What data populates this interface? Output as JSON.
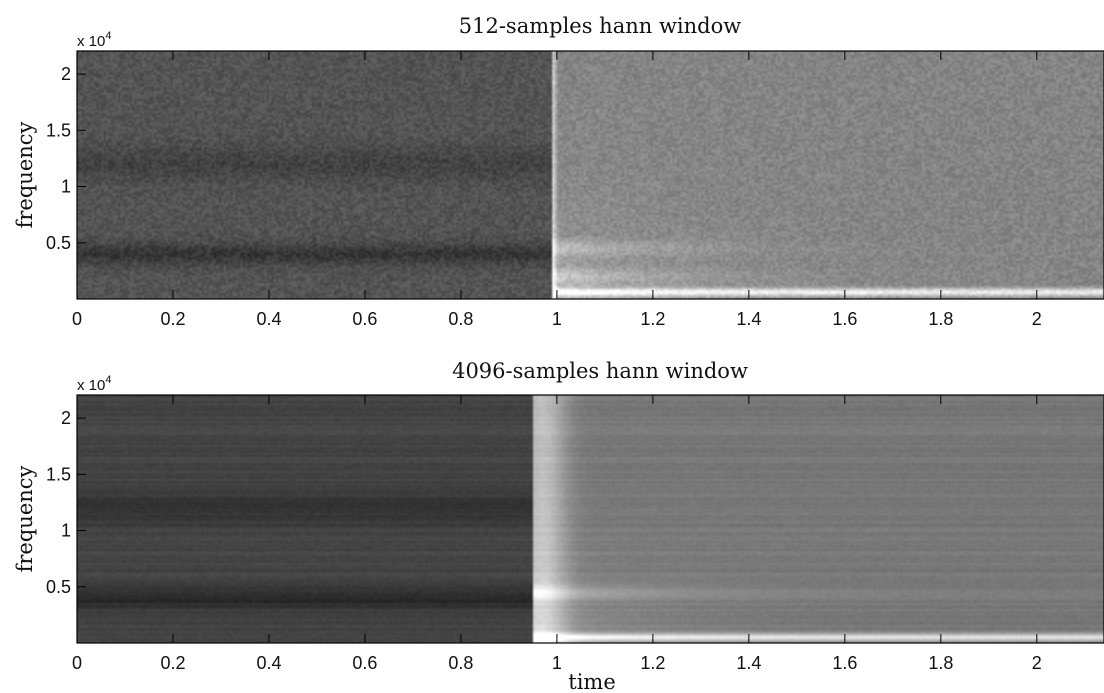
{
  "chart_data": [
    {
      "type": "heatmap",
      "title": "512-samples hann window",
      "xlabel": "",
      "ylabel": "frequency",
      "y_scale_label": "x 10",
      "y_scale_exponent": "4",
      "xlim": [
        0,
        2.14
      ],
      "ylim": [
        0,
        22050
      ],
      "x_ticks": [
        0,
        0.2,
        0.4,
        0.6,
        0.8,
        1,
        1.2,
        1.4,
        1.6,
        1.8,
        2
      ],
      "x_tick_labels": [
        "0",
        "0.2",
        "0.4",
        "0.6",
        "0.8",
        "1",
        "1.2",
        "1.4",
        "1.6",
        "1.8",
        "2"
      ],
      "y_ticks": [
        5000,
        10000,
        15000,
        20000
      ],
      "y_tick_labels": [
        "0.5",
        "1",
        "1.5",
        "2"
      ],
      "colormap": "gray",
      "transient_time": 0.99,
      "before_level": 0.33,
      "after_level": 0.52,
      "dark_bands_before": [
        4000,
        12000
      ],
      "bright_bands_after": [
        600,
        2000,
        4500
      ],
      "noise": 0.06,
      "smoothing": "fine"
    },
    {
      "type": "heatmap",
      "title": "4096-samples hann window",
      "xlabel": "time",
      "ylabel": "frequency",
      "y_scale_label": "x 10",
      "y_scale_exponent": "4",
      "xlim": [
        0,
        2.14
      ],
      "ylim": [
        0,
        22050
      ],
      "x_ticks": [
        0,
        0.2,
        0.4,
        0.6,
        0.8,
        1,
        1.2,
        1.4,
        1.6,
        1.8,
        2
      ],
      "x_tick_labels": [
        "0",
        "0.2",
        "0.4",
        "0.6",
        "0.8",
        "1",
        "1.2",
        "1.4",
        "1.6",
        "1.8",
        "2"
      ],
      "y_ticks": [
        5000,
        10000,
        15000,
        20000
      ],
      "y_tick_labels": [
        "0.5",
        "1",
        "1.5",
        "2"
      ],
      "colormap": "gray",
      "transient_time": 0.95,
      "before_level": 0.27,
      "after_level": 0.47,
      "dark_bands_before": [
        4000,
        12000
      ],
      "bright_bands_after": [
        500,
        4500
      ],
      "noise": 0.03,
      "smoothing": "horizontal-streaks"
    }
  ]
}
